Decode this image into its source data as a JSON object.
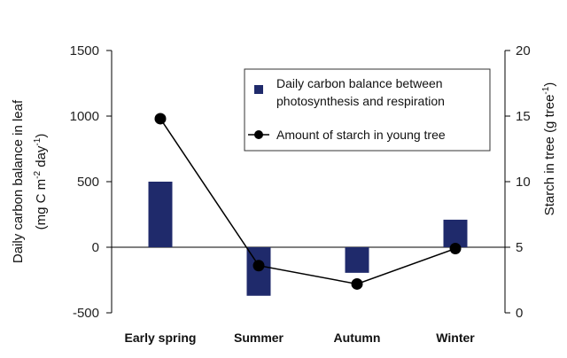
{
  "chart_data": {
    "type": "bar+line",
    "categories": [
      "Early spring",
      "Summer",
      "Autumn",
      "Winter"
    ],
    "series": [
      {
        "name": "Daily carbon balance between photosynthesis and respiration",
        "type": "bar",
        "axis": "left",
        "values": [
          500,
          -370,
          -195,
          210
        ],
        "color": "#1f2a6b"
      },
      {
        "name": "Amount of starch in young tree",
        "type": "line",
        "axis": "right",
        "values": [
          14.8,
          3.6,
          2.2,
          4.9
        ],
        "color": "#000000"
      }
    ],
    "left_axis": {
      "label_line1": "Daily carbon balance in leaf",
      "label_line2_pre": "(mg C m",
      "label_line2_sup1": "-2",
      "label_line2_mid": " day",
      "label_line2_sup2": "-1",
      "label_line2_post": ")",
      "ylim": [
        -500,
        1500
      ],
      "ticks": [
        -500,
        0,
        500,
        1000,
        1500
      ]
    },
    "right_axis": {
      "label_pre": "Starch in tree (g tree",
      "label_sup": "-1",
      "label_post": ")",
      "ylim": [
        0,
        20
      ],
      "ticks": [
        0,
        5,
        10,
        15,
        20
      ]
    },
    "legend": {
      "bar_line1": "Daily carbon balance between",
      "bar_line2": "photosynthesis and respiration",
      "line_label": "Amount of starch in young tree",
      "placement": "top-right"
    },
    "grid": false
  }
}
